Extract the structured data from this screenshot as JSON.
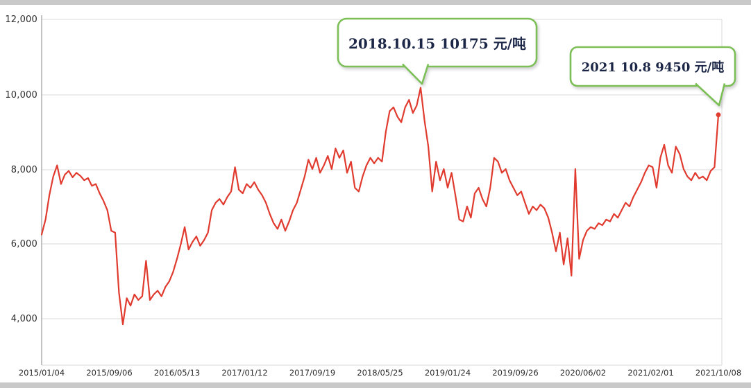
{
  "page": {
    "background_color": "#c9c9c9",
    "panel_color": "#ffffff"
  },
  "chart_data": {
    "type": "line",
    "title": "",
    "unit": "元/吨",
    "line_color": "#e03b2e",
    "callout_border_color": "#7cbf57",
    "grid": true,
    "legend": "none",
    "y_ticks": [
      12000,
      10000,
      8000,
      6000,
      4000
    ],
    "y_tick_labels": [
      "12,000",
      "10,000",
      "8,000",
      "6,000",
      "4,000"
    ],
    "ylim": [
      2760,
      12000
    ],
    "x_tick_labels": [
      "2015/01/04",
      "2015/09/06",
      "2016/05/13",
      "2017/01/12",
      "2017/09/19",
      "2018/05/25",
      "2019/01/24",
      "2019/09/26",
      "2020/06/02",
      "2021/02/01",
      "2021/10/08"
    ],
    "x_range": [
      "2015/01/04",
      "2021/10/08"
    ],
    "values": [
      6250,
      6650,
      7300,
      7800,
      8100,
      7600,
      7850,
      7950,
      7780,
      7900,
      7820,
      7700,
      7760,
      7550,
      7600,
      7350,
      7150,
      6900,
      6350,
      6300,
      4700,
      3850,
      4550,
      4350,
      4650,
      4500,
      4600,
      5550,
      4500,
      4650,
      4750,
      4600,
      4850,
      5000,
      5250,
      5600,
      6000,
      6450,
      5850,
      6050,
      6200,
      5950,
      6100,
      6300,
      6900,
      7100,
      7200,
      7050,
      7250,
      7400,
      8050,
      7450,
      7350,
      7600,
      7500,
      7650,
      7450,
      7300,
      7100,
      6800,
      6550,
      6400,
      6650,
      6350,
      6600,
      6900,
      7100,
      7450,
      7800,
      8250,
      8000,
      8300,
      7900,
      8100,
      8350,
      8000,
      8550,
      8300,
      8500,
      7900,
      8200,
      7500,
      7400,
      7800,
      8100,
      8300,
      8150,
      8300,
      8200,
      9000,
      9550,
      9650,
      9400,
      9250,
      9650,
      9850,
      9500,
      9700,
      10175,
      9300,
      8600,
      7400,
      8200,
      7700,
      8000,
      7500,
      7900,
      7300,
      6650,
      6600,
      7000,
      6700,
      7350,
      7500,
      7200,
      7000,
      7500,
      8300,
      8200,
      7900,
      8000,
      7700,
      7500,
      7300,
      7400,
      7100,
      6800,
      7000,
      6900,
      7050,
      6950,
      6700,
      6300,
      5800,
      6300,
      5450,
      6150,
      5150,
      8000,
      5600,
      6100,
      6350,
      6450,
      6400,
      6550,
      6500,
      6650,
      6600,
      6800,
      6700,
      6900,
      7100,
      7000,
      7250,
      7450,
      7650,
      7900,
      8100,
      8050,
      7500,
      8300,
      8650,
      8100,
      7900,
      8600,
      8400,
      8000,
      7800,
      7700,
      7900,
      7750,
      7800,
      7700,
      7950,
      8050,
      9450
    ],
    "annotations": [
      {
        "label": "2018.10.15 10175 元/吨",
        "date": "2018.10.15",
        "value": 10175
      },
      {
        "label": "2021 10.8 9450 元/吨",
        "date": "2021.10.8",
        "value": 9450
      }
    ]
  }
}
